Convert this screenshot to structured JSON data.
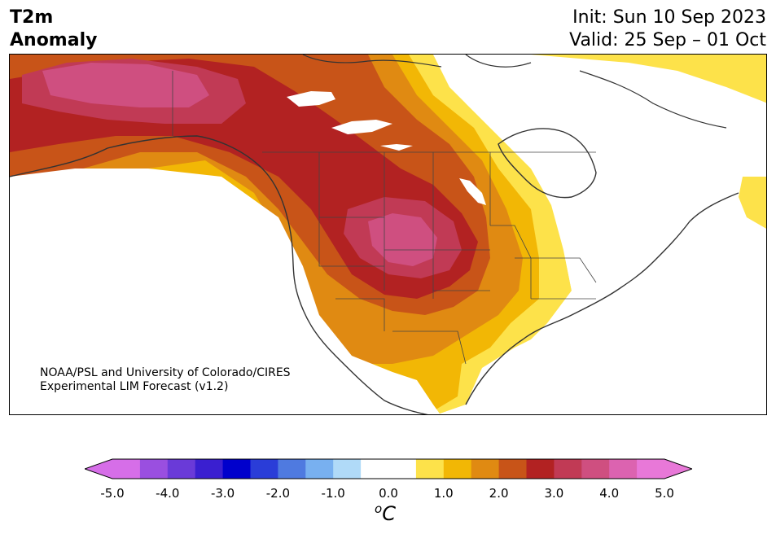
{
  "title": {
    "variable": "T2m",
    "subtitle": "Anomaly",
    "init": "Init: Sun 10 Sep 2023",
    "valid": "Valid: 25 Sep – 01 Oct"
  },
  "credit": {
    "line1": "NOAA/PSL and University of Colorado/CIRES",
    "line2": "Experimental LIM Forecast (v1.2)"
  },
  "colorbar": {
    "unit_degree": "o",
    "unit_letter": "C",
    "tick_labels": [
      "-5.0",
      "-4.0",
      "-3.0",
      "-2.0",
      "-1.0",
      "0.0",
      "1.0",
      "2.0",
      "3.0",
      "4.0",
      "5.0"
    ],
    "colors": [
      "#d66ee8",
      "#9a4fe0",
      "#6a3ad8",
      "#3a1fd0",
      "#0000cc",
      "#2a3dd8",
      "#4f7ae0",
      "#78b0f0",
      "#b0daf8",
      "#ffffff",
      "#ffffff",
      "#fde24a",
      "#f2b705",
      "#e08a12",
      "#c85418",
      "#b22222",
      "#c13a55",
      "#cf4f80",
      "#dc63b0",
      "#e878d8"
    ],
    "extend_low_color": "#d66ee8",
    "extend_high_color": "#e878d8"
  },
  "map": {
    "region": "North America",
    "anomaly_levels": {
      "0.5-1.0": "#fde24a",
      "1.0-1.5": "#f2b705",
      "1.5-2.0": "#e08a12",
      "2.0-2.5": "#c85418",
      "2.5-3.0": "#b22222",
      "3.0-3.5": "#c13a55",
      "3.5-4.0": "#cf4f80"
    }
  }
}
